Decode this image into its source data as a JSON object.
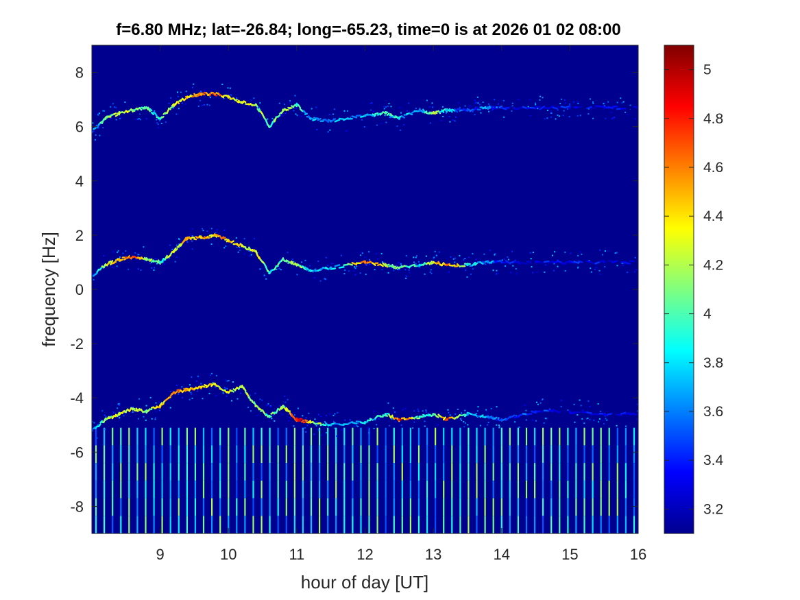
{
  "title": "f=6.80 MHz;  lat=-26.84; long=-65.23, time=0 is at 2026 01 02 08:00",
  "chart_data": {
    "type": "heatmap",
    "title": "f=6.80 MHz;  lat=-26.84; long=-65.23, time=0 is at 2026 01 02 08:00",
    "xlabel": "hour of day [UT]",
    "ylabel": "frequency [Hz]",
    "xlim": [
      8.0,
      16.0
    ],
    "ylim": [
      -9.0,
      9.0
    ],
    "xticks": [
      9,
      10,
      11,
      12,
      13,
      14,
      15,
      16
    ],
    "xtick_labels": [
      "9",
      "10",
      "11",
      "12",
      "13",
      "14",
      "15",
      "16"
    ],
    "yticks": [
      -8,
      -6,
      -4,
      -2,
      0,
      2,
      4,
      6,
      8
    ],
    "ytick_labels": [
      "-8",
      "-6",
      "-4",
      "-2",
      "0",
      "2",
      "4",
      "6",
      "8"
    ],
    "colormap": "jet",
    "background_color": "#00008f",
    "colorbar": {
      "clim": [
        3.1,
        5.1
      ],
      "ticks": [
        3.2,
        3.4,
        3.6,
        3.8,
        4.0,
        4.2,
        4.4,
        4.6,
        4.8,
        5.0
      ],
      "tick_labels": [
        "3.2",
        "3.4",
        "3.6",
        "3.8",
        "4",
        "4.2",
        "4.4",
        "4.6",
        "4.8",
        "5"
      ]
    },
    "traces": [
      {
        "band": "upper",
        "t": [
          8.0,
          8.2,
          8.4,
          8.6,
          8.8,
          9.0,
          9.2,
          9.4,
          9.6,
          9.8,
          10.0,
          10.2,
          10.4,
          10.6,
          10.8,
          11.0,
          11.2,
          11.5,
          12.0,
          12.3,
          12.5,
          12.8,
          13.0,
          13.2,
          13.5,
          13.8,
          14.0,
          14.5,
          15.0,
          15.5,
          16.0
        ],
        "f": [
          5.8,
          6.3,
          6.5,
          6.6,
          6.7,
          6.3,
          6.8,
          7.1,
          7.2,
          7.2,
          7.1,
          6.9,
          6.8,
          6.0,
          6.6,
          6.8,
          6.3,
          6.2,
          6.4,
          6.5,
          6.3,
          6.6,
          6.5,
          6.6,
          6.6,
          6.7,
          6.7,
          6.7,
          6.7,
          6.7,
          6.7
        ],
        "v": [
          3.5,
          4.1,
          4.3,
          4.1,
          4.0,
          3.9,
          4.3,
          4.4,
          4.5,
          4.6,
          4.4,
          4.3,
          4.2,
          4.0,
          4.2,
          3.9,
          3.7,
          3.6,
          3.7,
          4.0,
          3.8,
          3.6,
          4.2,
          3.7,
          3.5,
          3.6,
          3.4,
          3.3,
          3.3,
          3.3,
          3.2
        ]
      },
      {
        "band": "middle",
        "t": [
          8.0,
          8.2,
          8.4,
          8.6,
          8.8,
          9.0,
          9.2,
          9.4,
          9.6,
          9.8,
          10.0,
          10.2,
          10.4,
          10.6,
          10.8,
          11.0,
          11.2,
          11.5,
          12.0,
          12.3,
          12.5,
          12.8,
          13.0,
          13.2,
          13.5,
          13.8,
          14.0,
          14.5,
          15.0,
          15.5,
          16.0
        ],
        "f": [
          0.5,
          0.9,
          1.1,
          1.2,
          1.1,
          1.0,
          1.4,
          1.9,
          1.9,
          2.0,
          1.8,
          1.6,
          1.4,
          0.6,
          1.1,
          0.9,
          0.7,
          0.8,
          1.0,
          0.9,
          0.8,
          0.9,
          1.0,
          0.9,
          0.9,
          1.0,
          1.0,
          1.0,
          1.0,
          1.0,
          1.0
        ],
        "v": [
          3.5,
          4.2,
          4.5,
          4.7,
          4.2,
          3.9,
          4.3,
          4.5,
          4.4,
          4.5,
          4.4,
          4.3,
          4.3,
          3.9,
          4.0,
          4.2,
          3.8,
          3.7,
          4.6,
          4.2,
          4.1,
          3.8,
          4.3,
          4.7,
          3.8,
          3.6,
          3.4,
          3.3,
          3.3,
          3.3,
          3.2
        ]
      },
      {
        "band": "lower",
        "t": [
          8.0,
          8.2,
          8.4,
          8.6,
          8.8,
          9.0,
          9.2,
          9.4,
          9.6,
          9.8,
          10.0,
          10.2,
          10.4,
          10.6,
          10.8,
          11.0,
          11.2,
          11.5,
          12.0,
          12.3,
          12.5,
          12.8,
          13.0,
          13.2,
          13.5,
          13.8,
          14.0,
          14.5,
          15.0,
          15.5,
          16.0
        ],
        "f": [
          -5.2,
          -4.8,
          -4.6,
          -4.4,
          -4.5,
          -4.3,
          -3.8,
          -3.7,
          -3.6,
          -3.5,
          -3.8,
          -3.6,
          -4.3,
          -4.7,
          -4.3,
          -4.8,
          -4.9,
          -5.0,
          -4.9,
          -4.6,
          -4.8,
          -4.7,
          -4.6,
          -4.8,
          -4.6,
          -4.7,
          -4.8,
          -4.5,
          -4.5,
          -4.6,
          -4.6
        ],
        "v": [
          3.5,
          4.1,
          4.3,
          4.2,
          4.1,
          4.4,
          4.6,
          4.5,
          4.4,
          4.3,
          4.3,
          4.2,
          4.2,
          4.0,
          4.1,
          4.8,
          4.3,
          3.7,
          3.8,
          3.9,
          4.8,
          3.9,
          4.0,
          4.7,
          3.7,
          3.6,
          3.5,
          3.4,
          3.3,
          3.3,
          3.2
        ]
      }
    ],
    "comb": {
      "f_range": [
        -9.0,
        -5.1
      ],
      "t_start": 8.0,
      "t_end": 16.0,
      "count": 66,
      "v": 3.85
    }
  }
}
